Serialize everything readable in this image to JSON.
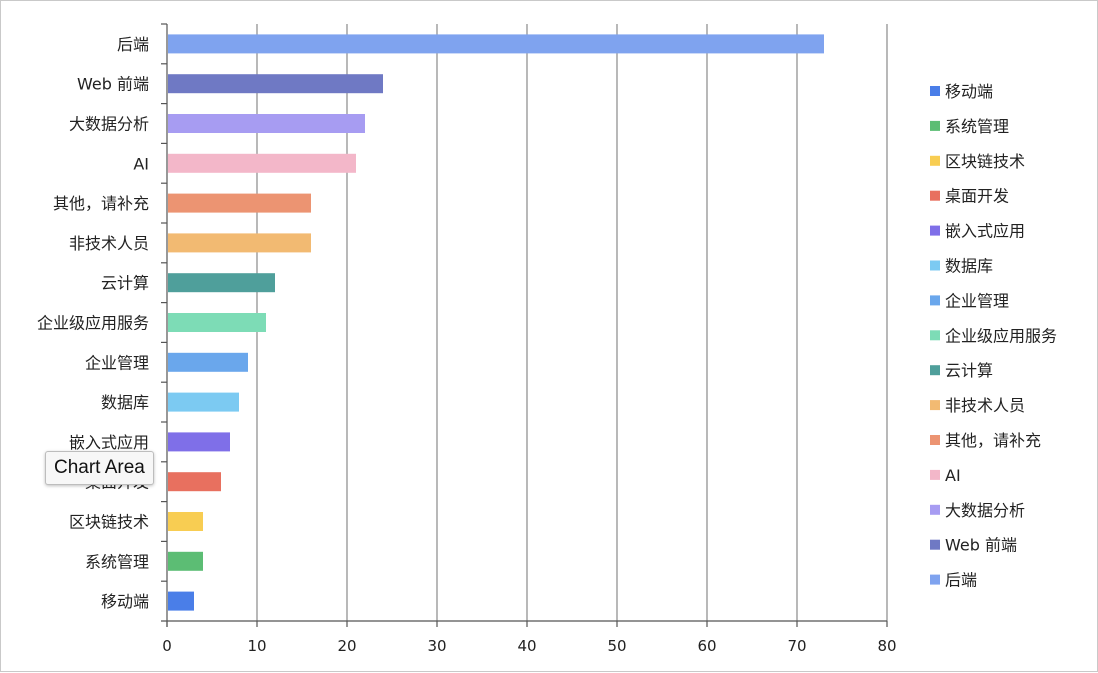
{
  "chart_data": {
    "type": "bar",
    "orientation": "horizontal",
    "categories": [
      "后端",
      "Web 前端",
      "大数据分析",
      "AI",
      "其他，请补充",
      "非技术人员",
      "云计算",
      "企业级应用服务",
      "企业管理",
      "数据库",
      "嵌入式应用",
      "桌面开发",
      "区块链技术",
      "系统管理",
      "移动端"
    ],
    "values": [
      73,
      24,
      22,
      21,
      16,
      16,
      12,
      11,
      9,
      8,
      7,
      6,
      4,
      4,
      3
    ],
    "colors": [
      "#7fa3ef",
      "#6f79c4",
      "#a79cf2",
      "#f3b7c9",
      "#ec9472",
      "#f2ba72",
      "#4f9f9b",
      "#7ddcb6",
      "#6aa7ec",
      "#7ccaf2",
      "#7f6fe8",
      "#e8705f",
      "#f8cd52",
      "#5cbd74",
      "#4a7ee8"
    ],
    "xlim": [
      0,
      80
    ],
    "xticks": [
      0,
      10,
      20,
      30,
      40,
      50,
      60,
      70,
      80
    ],
    "grid": true,
    "legend_position": "right",
    "legend": [
      "移动端",
      "系统管理",
      "区块链技术",
      "桌面开发",
      "嵌入式应用",
      "数据库",
      "企业管理",
      "企业级应用服务",
      "云计算",
      "非技术人员",
      "其他，请补充",
      "AI",
      "大数据分析",
      "Web 前端",
      "后端"
    ]
  },
  "tooltip": {
    "text": "Chart Area"
  }
}
